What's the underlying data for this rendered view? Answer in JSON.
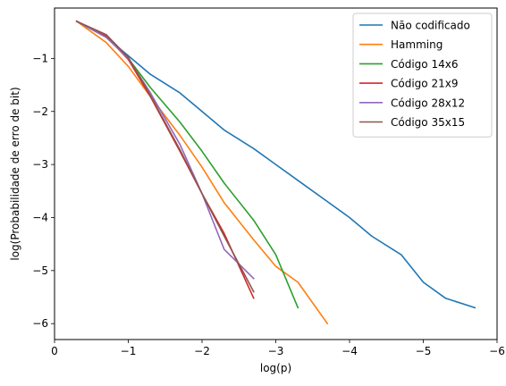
{
  "chart_data": {
    "type": "line",
    "title": "",
    "xlabel": "log(p)",
    "ylabel": "log(Probabilidade de erro de bit)",
    "xlim": [
      0,
      -6
    ],
    "ylim": [
      -6.3,
      -0.05
    ],
    "x_inverted": true,
    "xticks": [
      0,
      -1,
      -2,
      -3,
      -4,
      -5,
      -6
    ],
    "xtick_labels": [
      "0",
      "−1",
      "−2",
      "−3",
      "−4",
      "−5",
      "−6"
    ],
    "yticks": [
      -1,
      -2,
      -3,
      -4,
      -5,
      -6
    ],
    "ytick_labels": [
      "−1",
      "−2",
      "−3",
      "−4",
      "−5",
      "−6"
    ],
    "grid": false,
    "legend_position": "top-right",
    "series": [
      {
        "name": "Não codificado",
        "color": "#1f77b4",
        "points": [
          [
            -0.3,
            -0.3
          ],
          [
            -0.7,
            -0.6
          ],
          [
            -1.0,
            -0.95
          ],
          [
            -1.3,
            -1.3
          ],
          [
            -1.7,
            -1.65
          ],
          [
            -2.0,
            -2.0
          ],
          [
            -2.3,
            -2.35
          ],
          [
            -2.7,
            -2.7
          ],
          [
            -3.0,
            -3.0
          ],
          [
            -3.3,
            -3.3
          ],
          [
            -3.7,
            -3.7
          ],
          [
            -4.0,
            -4.0
          ],
          [
            -4.3,
            -4.35
          ],
          [
            -4.7,
            -4.7
          ],
          [
            -5.0,
            -5.22
          ],
          [
            -5.3,
            -5.52
          ],
          [
            -5.7,
            -5.7
          ]
        ]
      },
      {
        "name": "Hamming",
        "color": "#ff7f0e",
        "points": [
          [
            -0.3,
            -0.3
          ],
          [
            -0.7,
            -0.7
          ],
          [
            -1.0,
            -1.15
          ],
          [
            -1.3,
            -1.72
          ],
          [
            -1.7,
            -2.45
          ],
          [
            -2.0,
            -3.05
          ],
          [
            -2.3,
            -3.72
          ],
          [
            -2.7,
            -4.42
          ],
          [
            -3.0,
            -4.92
          ],
          [
            -3.3,
            -5.22
          ],
          [
            -3.7,
            -6.0
          ]
        ]
      },
      {
        "name": "Código 14x6",
        "color": "#2ca02c",
        "points": [
          [
            -0.3,
            -0.3
          ],
          [
            -0.7,
            -0.6
          ],
          [
            -1.0,
            -1.0
          ],
          [
            -1.3,
            -1.55
          ],
          [
            -1.7,
            -2.2
          ],
          [
            -2.0,
            -2.75
          ],
          [
            -2.3,
            -3.35
          ],
          [
            -2.7,
            -4.05
          ],
          [
            -3.0,
            -4.7
          ],
          [
            -3.3,
            -5.7
          ]
        ]
      },
      {
        "name": "Código 21x9",
        "color": "#d62728",
        "points": [
          [
            -0.3,
            -0.3
          ],
          [
            -0.7,
            -0.58
          ],
          [
            -1.0,
            -1.02
          ],
          [
            -1.3,
            -1.72
          ],
          [
            -1.7,
            -2.75
          ],
          [
            -2.0,
            -3.55
          ],
          [
            -2.3,
            -4.3
          ],
          [
            -2.7,
            -5.52
          ]
        ]
      },
      {
        "name": "Código 28x12",
        "color": "#9467bd",
        "points": [
          [
            -0.3,
            -0.3
          ],
          [
            -0.7,
            -0.6
          ],
          [
            -1.0,
            -1.0
          ],
          [
            -1.3,
            -1.65
          ],
          [
            -1.7,
            -2.62
          ],
          [
            -2.0,
            -3.55
          ],
          [
            -2.3,
            -4.6
          ],
          [
            -2.7,
            -5.15
          ]
        ]
      },
      {
        "name": "Código 35x15",
        "color": "#8c564b",
        "points": [
          [
            -0.3,
            -0.3
          ],
          [
            -0.7,
            -0.55
          ],
          [
            -1.0,
            -0.98
          ],
          [
            -1.3,
            -1.7
          ],
          [
            -1.7,
            -2.72
          ],
          [
            -2.0,
            -3.55
          ],
          [
            -2.3,
            -4.35
          ],
          [
            -2.7,
            -5.4
          ]
        ]
      }
    ]
  }
}
